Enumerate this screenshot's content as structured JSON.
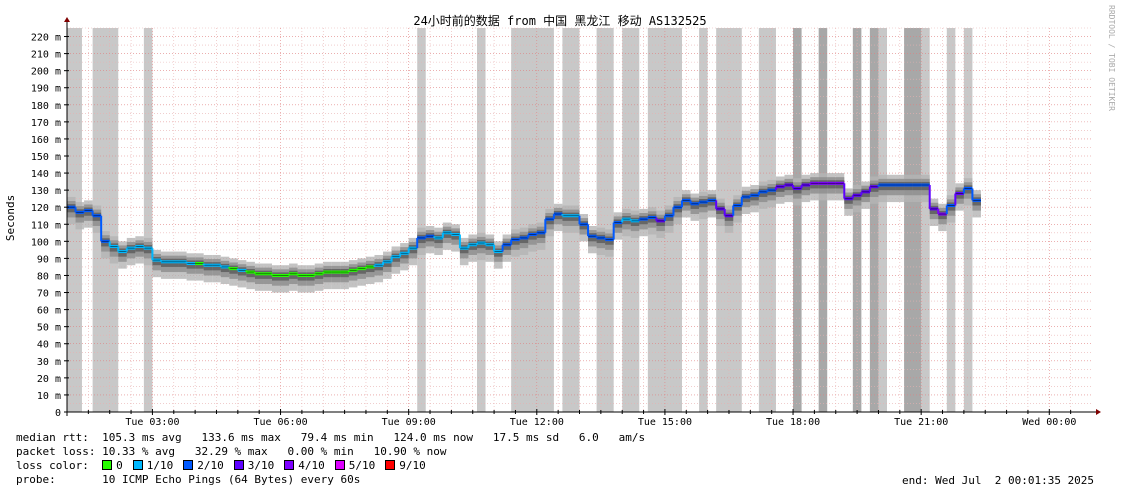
{
  "colors": {
    "background": "#ffffff",
    "grid_major": "#e08080",
    "grid_minor": "#e8b0b0",
    "loss_band": "#c8c8c8",
    "loss_band_dark": "#a8a8a8",
    "smoke_light": "#b4b4b4",
    "smoke_mid": "#8c8c8c",
    "smoke_dark": "#5a5a5a",
    "axis": "#000000",
    "arrow": "#800000"
  },
  "watermark": "RRDTOOL / TOBI OETIKER",
  "chart_data": {
    "type": "line",
    "title": "24小时前的数据 from 中国 黑龙江 移动 AS132525",
    "ylabel": "Seconds",
    "xlabel": "",
    "ylim": [
      0,
      225
    ],
    "grid": true,
    "y_ticks": [
      0,
      10,
      20,
      30,
      40,
      50,
      60,
      70,
      80,
      90,
      100,
      110,
      120,
      130,
      140,
      150,
      160,
      170,
      180,
      190,
      200,
      210,
      220
    ],
    "y_tick_labels": [
      "0",
      "10 m",
      "20 m",
      "30 m",
      "40 m",
      "50 m",
      "60 m",
      "70 m",
      "80 m",
      "90 m",
      "100 m",
      "110 m",
      "120 m",
      "130 m",
      "140 m",
      "150 m",
      "160 m",
      "170 m",
      "180 m",
      "190 m",
      "200 m",
      "210 m",
      "220 m"
    ],
    "x_range_hours": [
      0,
      24
    ],
    "x_ticks": [
      {
        "hour": 2,
        "label": "Tue 03:00"
      },
      {
        "hour": 5,
        "label": "Tue 06:00"
      },
      {
        "hour": 8,
        "label": "Tue 09:00"
      },
      {
        "hour": 11,
        "label": "Tue 12:00"
      },
      {
        "hour": 14,
        "label": "Tue 15:00"
      },
      {
        "hour": 17,
        "label": "Tue 18:00"
      },
      {
        "hour": 20,
        "label": "Tue 21:00"
      },
      {
        "hour": 23,
        "label": "Wed 00:00"
      }
    ],
    "median_rtt": [
      {
        "x": 0.0,
        "y": 120,
        "loss": 2
      },
      {
        "x": 0.2,
        "y": 117,
        "loss": 2
      },
      {
        "x": 0.4,
        "y": 118,
        "loss": 2
      },
      {
        "x": 0.6,
        "y": 115,
        "loss": 2
      },
      {
        "x": 0.8,
        "y": 100,
        "loss": 2
      },
      {
        "x": 1.0,
        "y": 97,
        "loss": 1
      },
      {
        "x": 1.2,
        "y": 94,
        "loss": 1
      },
      {
        "x": 1.4,
        "y": 96,
        "loss": 1
      },
      {
        "x": 1.6,
        "y": 97,
        "loss": 1
      },
      {
        "x": 1.8,
        "y": 96,
        "loss": 1
      },
      {
        "x": 2.0,
        "y": 89,
        "loss": 1
      },
      {
        "x": 2.2,
        "y": 88,
        "loss": 1
      },
      {
        "x": 2.4,
        "y": 88,
        "loss": 1
      },
      {
        "x": 2.6,
        "y": 88,
        "loss": 1
      },
      {
        "x": 2.8,
        "y": 87,
        "loss": 1
      },
      {
        "x": 3.0,
        "y": 87,
        "loss": 0
      },
      {
        "x": 3.2,
        "y": 86,
        "loss": 1
      },
      {
        "x": 3.4,
        "y": 86,
        "loss": 1
      },
      {
        "x": 3.6,
        "y": 85,
        "loss": 1
      },
      {
        "x": 3.8,
        "y": 84,
        "loss": 0
      },
      {
        "x": 4.0,
        "y": 83,
        "loss": 1
      },
      {
        "x": 4.2,
        "y": 82,
        "loss": 0
      },
      {
        "x": 4.4,
        "y": 81,
        "loss": 0
      },
      {
        "x": 4.6,
        "y": 81,
        "loss": 0
      },
      {
        "x": 4.8,
        "y": 80,
        "loss": 0
      },
      {
        "x": 5.0,
        "y": 80,
        "loss": 0
      },
      {
        "x": 5.2,
        "y": 81,
        "loss": 0
      },
      {
        "x": 5.4,
        "y": 80,
        "loss": 0
      },
      {
        "x": 5.6,
        "y": 80,
        "loss": 0
      },
      {
        "x": 5.8,
        "y": 81,
        "loss": 0
      },
      {
        "x": 6.0,
        "y": 82,
        "loss": 0
      },
      {
        "x": 6.2,
        "y": 82,
        "loss": 0
      },
      {
        "x": 6.4,
        "y": 82,
        "loss": 0
      },
      {
        "x": 6.6,
        "y": 83,
        "loss": 0
      },
      {
        "x": 6.8,
        "y": 84,
        "loss": 0
      },
      {
        "x": 7.0,
        "y": 85,
        "loss": 0
      },
      {
        "x": 7.2,
        "y": 86,
        "loss": 1
      },
      {
        "x": 7.4,
        "y": 88,
        "loss": 1
      },
      {
        "x": 7.6,
        "y": 91,
        "loss": 1
      },
      {
        "x": 7.8,
        "y": 93,
        "loss": 1
      },
      {
        "x": 8.0,
        "y": 96,
        "loss": 1
      },
      {
        "x": 8.2,
        "y": 102,
        "loss": 2
      },
      {
        "x": 8.4,
        "y": 103,
        "loss": 2
      },
      {
        "x": 8.6,
        "y": 102,
        "loss": 1
      },
      {
        "x": 8.8,
        "y": 105,
        "loss": 1
      },
      {
        "x": 9.0,
        "y": 104,
        "loss": 1
      },
      {
        "x": 9.2,
        "y": 96,
        "loss": 1
      },
      {
        "x": 9.4,
        "y": 98,
        "loss": 1
      },
      {
        "x": 9.6,
        "y": 99,
        "loss": 1
      },
      {
        "x": 9.8,
        "y": 98,
        "loss": 1
      },
      {
        "x": 10.0,
        "y": 94,
        "loss": 1
      },
      {
        "x": 10.2,
        "y": 98,
        "loss": 2
      },
      {
        "x": 10.4,
        "y": 101,
        "loss": 2
      },
      {
        "x": 10.6,
        "y": 102,
        "loss": 2
      },
      {
        "x": 10.8,
        "y": 104,
        "loss": 2
      },
      {
        "x": 11.0,
        "y": 105,
        "loss": 2
      },
      {
        "x": 11.2,
        "y": 113,
        "loss": 2
      },
      {
        "x": 11.4,
        "y": 116,
        "loss": 2
      },
      {
        "x": 11.6,
        "y": 115,
        "loss": 1
      },
      {
        "x": 11.8,
        "y": 115,
        "loss": 1
      },
      {
        "x": 12.0,
        "y": 110,
        "loss": 2
      },
      {
        "x": 12.2,
        "y": 103,
        "loss": 2
      },
      {
        "x": 12.4,
        "y": 102,
        "loss": 2
      },
      {
        "x": 12.6,
        "y": 101,
        "loss": 2
      },
      {
        "x": 12.8,
        "y": 111,
        "loss": 2
      },
      {
        "x": 13.0,
        "y": 113,
        "loss": 1
      },
      {
        "x": 13.2,
        "y": 112,
        "loss": 1
      },
      {
        "x": 13.4,
        "y": 113,
        "loss": 2
      },
      {
        "x": 13.6,
        "y": 114,
        "loss": 2
      },
      {
        "x": 13.8,
        "y": 112,
        "loss": 3
      },
      {
        "x": 14.0,
        "y": 115,
        "loss": 2
      },
      {
        "x": 14.2,
        "y": 120,
        "loss": 2
      },
      {
        "x": 14.4,
        "y": 124,
        "loss": 2
      },
      {
        "x": 14.6,
        "y": 122,
        "loss": 2
      },
      {
        "x": 14.8,
        "y": 123,
        "loss": 2
      },
      {
        "x": 15.0,
        "y": 124,
        "loss": 2
      },
      {
        "x": 15.2,
        "y": 119,
        "loss": 3
      },
      {
        "x": 15.4,
        "y": 115,
        "loss": 3
      },
      {
        "x": 15.6,
        "y": 121,
        "loss": 2
      },
      {
        "x": 15.8,
        "y": 126,
        "loss": 2
      },
      {
        "x": 16.0,
        "y": 127,
        "loss": 2
      },
      {
        "x": 16.2,
        "y": 129,
        "loss": 2
      },
      {
        "x": 16.4,
        "y": 130,
        "loss": 2
      },
      {
        "x": 16.6,
        "y": 132,
        "loss": 3
      },
      {
        "x": 16.8,
        "y": 133,
        "loss": 3
      },
      {
        "x": 17.0,
        "y": 131,
        "loss": 3
      },
      {
        "x": 17.2,
        "y": 133,
        "loss": 3
      },
      {
        "x": 17.4,
        "y": 134,
        "loss": 4
      },
      {
        "x": 17.6,
        "y": 134,
        "loss": 4
      },
      {
        "x": 17.8,
        "y": 134,
        "loss": 4
      },
      {
        "x": 18.0,
        "y": 134,
        "loss": 4
      },
      {
        "x": 18.2,
        "y": 125,
        "loss": 3
      },
      {
        "x": 18.4,
        "y": 127,
        "loss": 3
      },
      {
        "x": 18.6,
        "y": 129,
        "loss": 3
      },
      {
        "x": 18.8,
        "y": 132,
        "loss": 3
      },
      {
        "x": 19.0,
        "y": 133,
        "loss": 2
      },
      {
        "x": 19.2,
        "y": 133,
        "loss": 2
      },
      {
        "x": 19.4,
        "y": 133,
        "loss": 2
      },
      {
        "x": 19.6,
        "y": 133,
        "loss": 2
      },
      {
        "x": 19.8,
        "y": 133,
        "loss": 2
      },
      {
        "x": 20.0,
        "y": 133,
        "loss": 2
      },
      {
        "x": 20.2,
        "y": 119,
        "loss": 3
      },
      {
        "x": 20.4,
        "y": 116,
        "loss": 4
      },
      {
        "x": 20.6,
        "y": 121,
        "loss": 2
      },
      {
        "x": 20.8,
        "y": 128,
        "loss": 3
      },
      {
        "x": 21.0,
        "y": 131,
        "loss": 2
      },
      {
        "x": 21.2,
        "y": 124,
        "loss": 2
      }
    ],
    "loss_bands": [
      {
        "x0": 0.0,
        "x1": 0.35
      },
      {
        "x0": 0.6,
        "x1": 1.2
      },
      {
        "x0": 1.8,
        "x1": 2.0
      },
      {
        "x0": 8.2,
        "x1": 8.4
      },
      {
        "x0": 9.6,
        "x1": 9.8
      },
      {
        "x0": 10.4,
        "x1": 11.4
      },
      {
        "x0": 11.6,
        "x1": 12.0
      },
      {
        "x0": 12.4,
        "x1": 12.8
      },
      {
        "x0": 13.0,
        "x1": 13.4
      },
      {
        "x0": 13.6,
        "x1": 14.4
      },
      {
        "x0": 14.8,
        "x1": 15.0
      },
      {
        "x0": 15.2,
        "x1": 15.8
      },
      {
        "x0": 16.2,
        "x1": 16.6
      },
      {
        "x0": 18.8,
        "x1": 19.2
      },
      {
        "x0": 20.0,
        "x1": 20.2
      },
      {
        "x0": 20.6,
        "x1": 20.8
      },
      {
        "x0": 21.0,
        "x1": 21.2
      }
    ],
    "loss_bands_dark": [
      {
        "x0": 17.0,
        "x1": 17.2
      },
      {
        "x0": 17.6,
        "x1": 17.8
      },
      {
        "x0": 18.4,
        "x1": 18.6
      },
      {
        "x0": 18.8,
        "x1": 19.0
      },
      {
        "x0": 19.6,
        "x1": 20.0
      }
    ]
  },
  "legend": {
    "median_rtt_label": "median rtt:",
    "median_rtt_values": "105.3 ms avg   133.6 ms max   79.4 ms min   124.0 ms now   17.5 ms sd   6.0   am/s",
    "packet_loss_label": "packet loss:",
    "packet_loss_values": "10.33 % avg   32.29 % max   0.00 % min   10.90 % now",
    "loss_color_label": "loss color:",
    "loss_colors": [
      {
        "label": "0",
        "color": "#26ff00"
      },
      {
        "label": "1/10",
        "color": "#00b8ff"
      },
      {
        "label": "2/10",
        "color": "#0059ff"
      },
      {
        "label": "3/10",
        "color": "#5e00ff"
      },
      {
        "label": "4/10",
        "color": "#7e00ff"
      },
      {
        "label": "5/10",
        "color": "#dd00ff"
      },
      {
        "label": "9/10",
        "color": "#ff0000"
      }
    ],
    "probe_label": "probe:",
    "probe_value": "10 ICMP Echo Pings (64 Bytes) every 60s",
    "end_text": "end: Wed Jul  2 00:01:35 2025"
  }
}
